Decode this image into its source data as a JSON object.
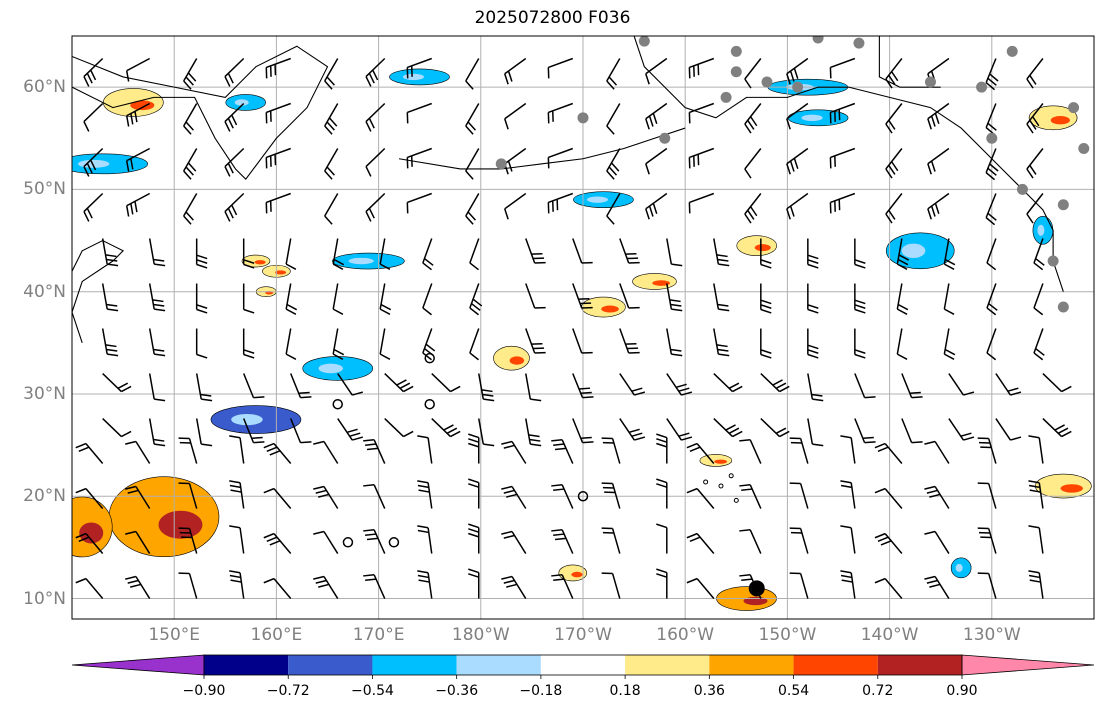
{
  "title": "2025072800 F036",
  "axes": {
    "lat_labels": [
      "10°N",
      "20°N",
      "30°N",
      "40°N",
      "50°N",
      "60°N"
    ],
    "lon_labels": [
      "150°E",
      "160°E",
      "170°E",
      "180°W",
      "170°W",
      "160°W",
      "150°W",
      "140°W",
      "130°W"
    ]
  },
  "colorbar": {
    "ticks": [
      "−0.90",
      "−0.72",
      "−0.54",
      "−0.36",
      "−0.18",
      "0.18",
      "0.36",
      "0.54",
      "0.72",
      "0.90"
    ],
    "colors": [
      "#9932cc",
      "#00008b",
      "#3a5bcc",
      "#00bfff",
      "#aadcff",
      "#ffffff",
      "#ffeb8a",
      "#ffa500",
      "#ff4500",
      "#b22222",
      "#ff88aa"
    ]
  },
  "chart_data": {
    "type": "heatmap",
    "extent": {
      "lon": [
        140,
        240
      ],
      "lat": [
        8,
        65
      ]
    },
    "field_levels": [
      -0.9,
      -0.72,
      -0.54,
      -0.36,
      -0.18,
      0.18,
      0.36,
      0.54,
      0.72,
      0.9
    ],
    "positive_regions": [
      {
        "lon": 146,
        "lat": 58.5,
        "level": 0.36
      },
      {
        "lon": 149,
        "lat": 18,
        "level": 0.54
      },
      {
        "lon": 141,
        "lat": 17,
        "level": 0.54
      },
      {
        "lon": 183,
        "lat": 33.5,
        "level": 0.36
      },
      {
        "lon": 160,
        "lat": 42,
        "level": 0.36
      },
      {
        "lon": 158,
        "lat": 43,
        "level": 0.36
      },
      {
        "lon": 192,
        "lat": 38.5,
        "level": 0.36
      },
      {
        "lon": 159,
        "lat": 40,
        "level": 0.36
      },
      {
        "lon": 189,
        "lat": 12.5,
        "level": 0.36
      },
      {
        "lon": 206,
        "lat": 10,
        "level": 0.54
      },
      {
        "lon": 197,
        "lat": 41,
        "level": 0.36
      },
      {
        "lon": 207,
        "lat": 44.5,
        "level": 0.36
      },
      {
        "lon": 236,
        "lat": 57,
        "level": 0.36
      },
      {
        "lon": 237,
        "lat": 21,
        "level": 0.36
      },
      {
        "lon": 203,
        "lat": 23.5,
        "level": 0.36
      }
    ],
    "negative_regions": [
      {
        "lon": 143,
        "lat": 52.5,
        "level": -0.36
      },
      {
        "lon": 157,
        "lat": 58.5,
        "level": -0.36
      },
      {
        "lon": 166,
        "lat": 32.5,
        "level": -0.36
      },
      {
        "lon": 158,
        "lat": 27.5,
        "level": -0.54
      },
      {
        "lon": 169,
        "lat": 43,
        "level": -0.36
      },
      {
        "lon": 192,
        "lat": 49,
        "level": -0.36
      },
      {
        "lon": 212,
        "lat": 60,
        "level": -0.36
      },
      {
        "lon": 213,
        "lat": 57,
        "level": -0.36
      },
      {
        "lon": 223,
        "lat": 44,
        "level": -0.36
      },
      {
        "lon": 235,
        "lat": 46,
        "level": -0.36
      },
      {
        "lon": 174,
        "lat": 61,
        "level": -0.36
      },
      {
        "lon": 227,
        "lat": 13,
        "level": -0.36
      }
    ],
    "wind_barbs": "regular grid of wind barbs over the domain",
    "station_markers": "grey filled dots along Alaska / NW North America coast; open circles near 170°E–170°W",
    "highlight_marker": {
      "lon": -153,
      "lat": 11
    }
  }
}
